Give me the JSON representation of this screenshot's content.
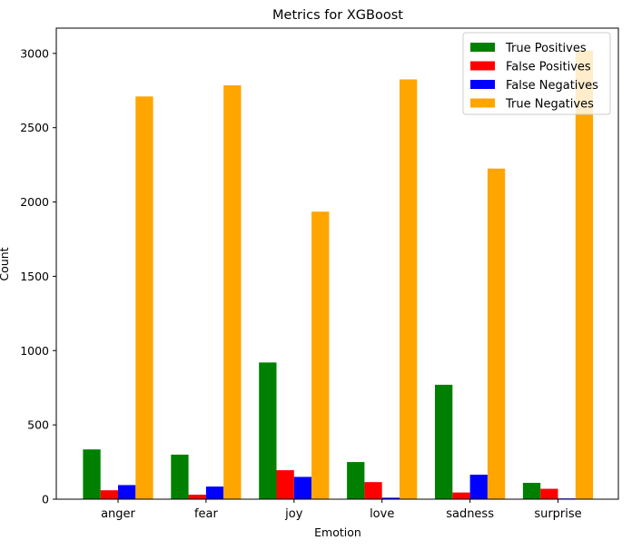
{
  "chart_data": {
    "type": "bar",
    "title": "Metrics for XGBoost",
    "xlabel": "Emotion",
    "ylabel": "Count",
    "categories": [
      "anger",
      "fear",
      "joy",
      "love",
      "sadness",
      "surprise"
    ],
    "ylim": [
      0,
      3170
    ],
    "yticks": [
      0,
      500,
      1000,
      1500,
      2000,
      2500,
      3000
    ],
    "grid": false,
    "legend_position": "top-right",
    "series": [
      {
        "name": "True Positives",
        "color": "#008000",
        "values": [
          335,
          300,
          920,
          250,
          770,
          110
        ]
      },
      {
        "name": "False Positives",
        "color": "#ff0000",
        "values": [
          60,
          30,
          195,
          115,
          45,
          70
        ]
      },
      {
        "name": "False Negatives",
        "color": "#0000ff",
        "values": [
          95,
          85,
          150,
          10,
          165,
          5
        ]
      },
      {
        "name": "True Negatives",
        "color": "#ffa500",
        "values": [
          2710,
          2785,
          1935,
          2825,
          2225,
          3020
        ]
      }
    ]
  }
}
